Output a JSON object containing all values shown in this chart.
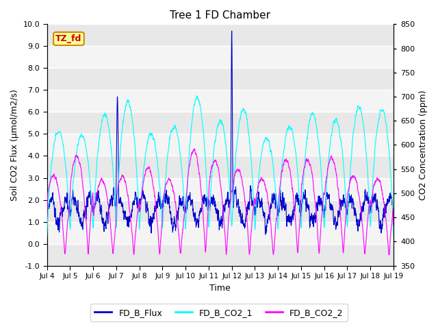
{
  "title": "Tree 1 FD Chamber",
  "xlabel": "Time",
  "ylabel_left": "Soil CO2 Flux (μmol/m2/s)",
  "ylabel_right": "CO2 Concentration (ppm)",
  "ylim_left": [
    -1.0,
    10.0
  ],
  "ylim_right": [
    350,
    850
  ],
  "yticks_left": [
    -1.0,
    0.0,
    1.0,
    2.0,
    3.0,
    4.0,
    5.0,
    6.0,
    7.0,
    8.0,
    9.0,
    10.0
  ],
  "yticks_right": [
    350,
    400,
    450,
    500,
    550,
    600,
    650,
    700,
    750,
    800,
    850
  ],
  "xtick_labels": [
    "Jul 4",
    "Jul 5",
    "Jul 6",
    "Jul 7",
    "Jul 8",
    "Jul 9",
    "Jul 10",
    "Jul 11",
    "Jul 12",
    "Jul 13",
    "Jul 14",
    "Jul 15",
    "Jul 16",
    "Jul 17",
    "Jul 18",
    "Jul 19"
  ],
  "color_flux": "#0000CD",
  "color_co2_1": "#00FFFF",
  "color_co2_2": "#FF00FF",
  "annotation_text": "TZ_fd",
  "annotation_color": "#CC0000",
  "annotation_bg": "#FFFF99",
  "annotation_border": "#CC8800",
  "legend_entries": [
    "FD_B_Flux",
    "FD_B_CO2_1",
    "FD_B_CO2_2"
  ],
  "bg_color": "#FFFFFF",
  "plot_bg_color": "#FFFFFF",
  "band_color_dark": "#E8E8E8",
  "band_color_light": "#F4F4F4",
  "n_points": 4000
}
